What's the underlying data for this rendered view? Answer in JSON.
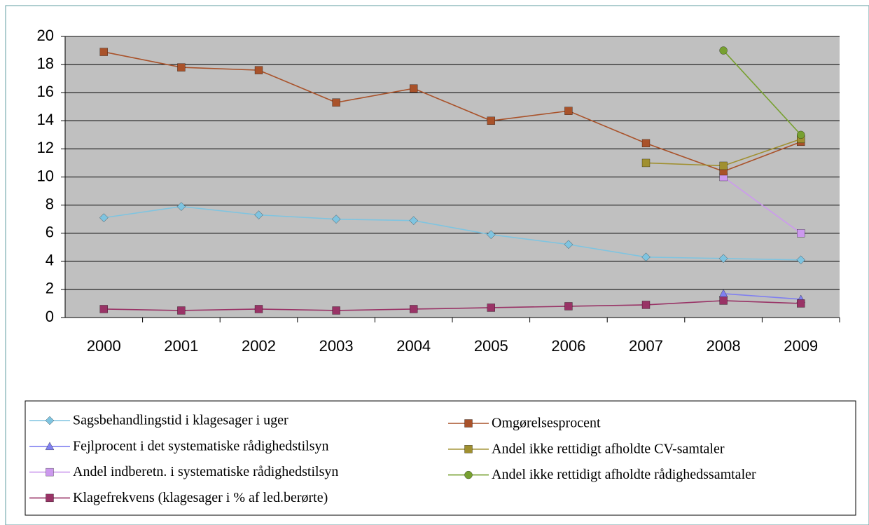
{
  "chart_data": {
    "type": "line",
    "categories": [
      "2000",
      "2001",
      "2002",
      "2003",
      "2004",
      "2005",
      "2006",
      "2007",
      "2008",
      "2009"
    ],
    "ylim": [
      0,
      20
    ],
    "yticks": [
      0,
      2,
      4,
      6,
      8,
      10,
      12,
      14,
      16,
      18,
      20
    ],
    "grid": true,
    "series": [
      {
        "name": "Sagsbehandlingstid i klagesager i uger",
        "color": "#7fc4e0",
        "marker": "diamond",
        "values": [
          7.1,
          7.9,
          7.3,
          7.0,
          6.9,
          5.9,
          5.2,
          4.3,
          4.2,
          4.1
        ]
      },
      {
        "name": "Fejlprocent i det systematiske rådighedstilsyn",
        "color": "#8080f0",
        "marker": "triangle",
        "values": [
          null,
          null,
          null,
          null,
          null,
          null,
          null,
          null,
          1.7,
          1.3
        ]
      },
      {
        "name": "Andel indberetn. i systematiske rådighedstilsyn",
        "color": "#cc99ee",
        "marker": "square",
        "values": [
          null,
          null,
          null,
          null,
          null,
          null,
          null,
          null,
          10.0,
          6.0
        ]
      },
      {
        "name": "Klagefrekvens (klagesager i % af led.berørte)",
        "color": "#993366",
        "marker": "square",
        "values": [
          0.6,
          0.5,
          0.6,
          0.5,
          0.6,
          0.7,
          0.8,
          0.9,
          1.2,
          1.0
        ]
      },
      {
        "name": "Omgørelsesprocent",
        "color": "#a9522a",
        "marker": "square",
        "values": [
          18.9,
          17.8,
          17.6,
          15.3,
          16.3,
          14.0,
          14.7,
          12.4,
          10.4,
          12.5
        ]
      },
      {
        "name": "Andel ikke rettidigt afholdte CV-samtaler",
        "color": "#a09030",
        "marker": "square",
        "values": [
          null,
          null,
          null,
          null,
          null,
          null,
          null,
          11.0,
          10.8,
          12.7
        ]
      },
      {
        "name": "Andel ikke rettidigt afholdte rådighedssamtaler",
        "color": "#77a030",
        "marker": "circle",
        "values": [
          null,
          null,
          null,
          null,
          null,
          null,
          null,
          null,
          19.0,
          13.0
        ]
      }
    ]
  }
}
